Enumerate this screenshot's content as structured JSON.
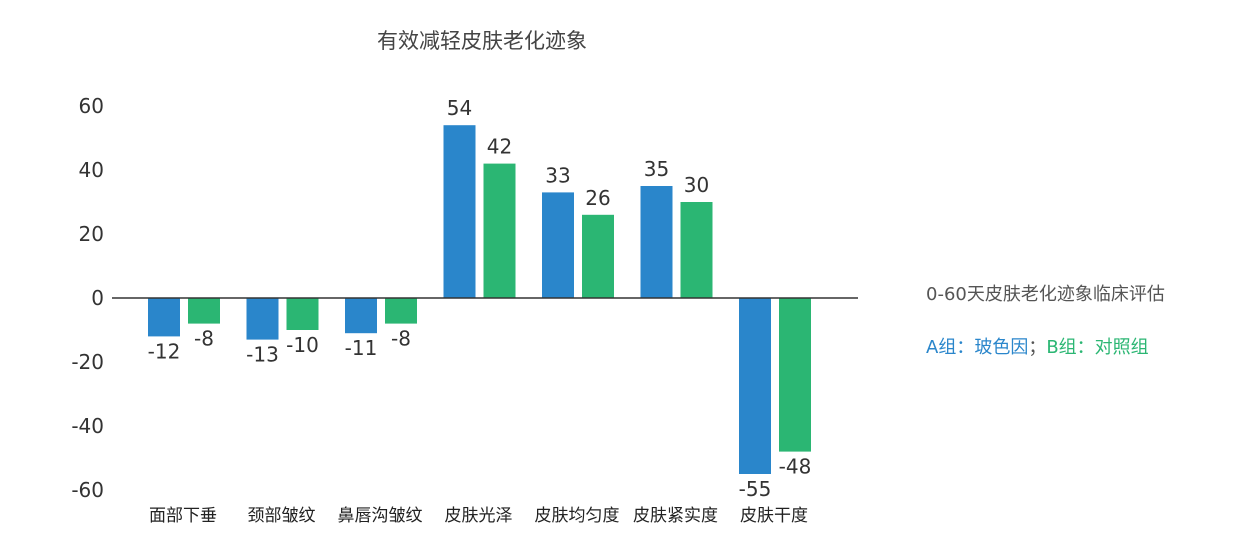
{
  "chart_data": {
    "type": "bar",
    "title": "有效减轻皮肤老化迹象",
    "categories": [
      "面部下垂",
      "颈部皱纹",
      "鼻唇沟皱纹",
      "皮肤光泽",
      "皮肤均匀度",
      "皮肤紧实度",
      "皮肤干度"
    ],
    "series": [
      {
        "name": "A组",
        "values": [
          -12,
          -13,
          -11,
          54,
          33,
          35,
          -55
        ],
        "color": "#2a86cb"
      },
      {
        "name": "B组",
        "values": [
          -8,
          -10,
          -8,
          42,
          26,
          30,
          -48
        ],
        "color": "#2bb673"
      }
    ],
    "ylim": [
      -60,
      60
    ],
    "yticks": [
      60,
      40,
      20,
      0,
      -20,
      -40,
      -60
    ],
    "grid": false
  },
  "annotations": {
    "title": "0-60天皮肤老化迹象临床评估",
    "group_a": "A组：玻色因",
    "separator": "；",
    "group_b": "B组：对照组"
  }
}
